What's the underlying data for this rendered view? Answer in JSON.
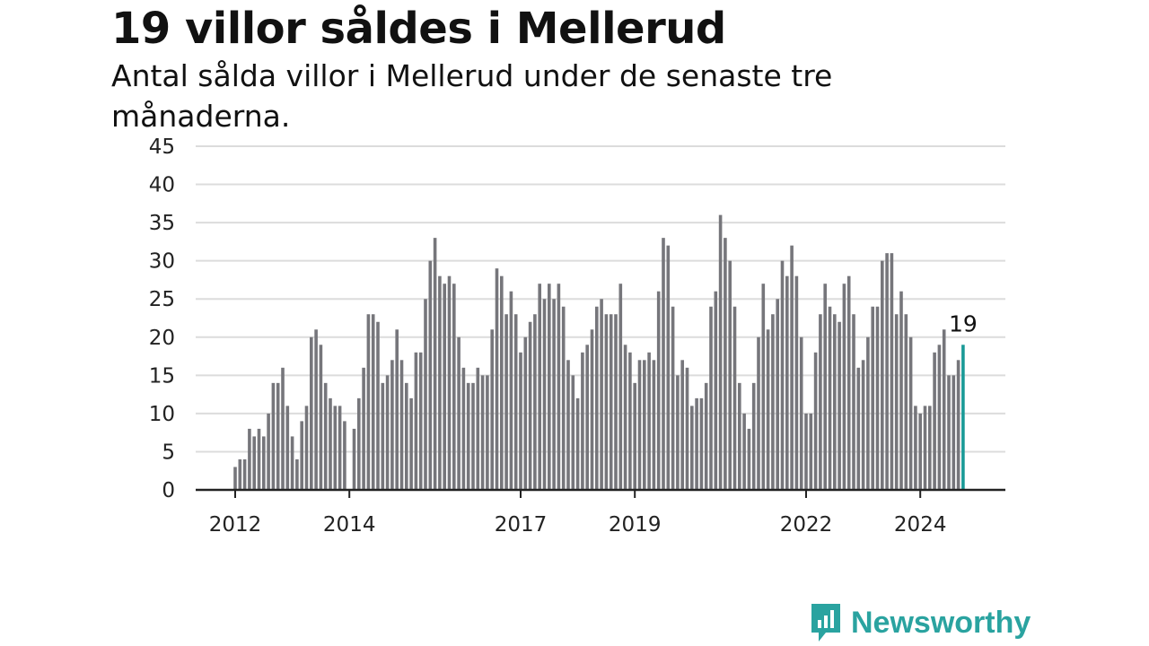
{
  "header": {
    "title": "19 villor såldes i Mellerud",
    "subtitle": "Antal sålda villor i Mellerud under de senaste tre månaderna."
  },
  "logo": {
    "text": "Newsworthy",
    "icon": "chart-bubble-icon"
  },
  "colors": {
    "bar": "#76767b",
    "highlight": "#1a9a97",
    "grid": "#dcdcdc",
    "axis": "#222222",
    "brand": "#2aa3a0"
  },
  "chart_data": {
    "type": "bar",
    "title": "19 villor såldes i Mellerud",
    "subtitle": "Antal sålda villor i Mellerud under de senaste tre månaderna.",
    "xlabel": "",
    "ylabel": "",
    "ylim": [
      0,
      45
    ],
    "yticks": [
      0,
      5,
      10,
      15,
      20,
      25,
      30,
      35,
      40,
      45
    ],
    "xtick_labels": [
      "2012",
      "2014",
      "2017",
      "2019",
      "2022",
      "2024"
    ],
    "grid": true,
    "last_value_label": "19",
    "series": [
      {
        "values": [
          3,
          4,
          4,
          8,
          7,
          8,
          7,
          10,
          14,
          14,
          16,
          11,
          7,
          4,
          9,
          11,
          20,
          21,
          19,
          14,
          12,
          11,
          11,
          9,
          0,
          8,
          12,
          16,
          23,
          23,
          22,
          14,
          15,
          17,
          21,
          17,
          14,
          12,
          18,
          18,
          25,
          30,
          33,
          28,
          27,
          28,
          27,
          20,
          16,
          14,
          14,
          16,
          15,
          15,
          21,
          29,
          28,
          23,
          26,
          23,
          18,
          20,
          22,
          23,
          27,
          25,
          27,
          25,
          27,
          24,
          17,
          15,
          12,
          18,
          19,
          21,
          24,
          25,
          23,
          23,
          23,
          27,
          19,
          18,
          14,
          17,
          17,
          18,
          17,
          26,
          33,
          32,
          24,
          15,
          17,
          16,
          11,
          12,
          12,
          14,
          24,
          26,
          36,
          33,
          30,
          24,
          14,
          10,
          8,
          14,
          20,
          27,
          21,
          23,
          25,
          30,
          28,
          32,
          28,
          20,
          10,
          10,
          18,
          23,
          27,
          24,
          23,
          22,
          27,
          28,
          23,
          16,
          17,
          20,
          24,
          24,
          30,
          31,
          31,
          23,
          26,
          23,
          20,
          11,
          10,
          11,
          11,
          18,
          19,
          21,
          15,
          15,
          17,
          19
        ]
      }
    ]
  }
}
